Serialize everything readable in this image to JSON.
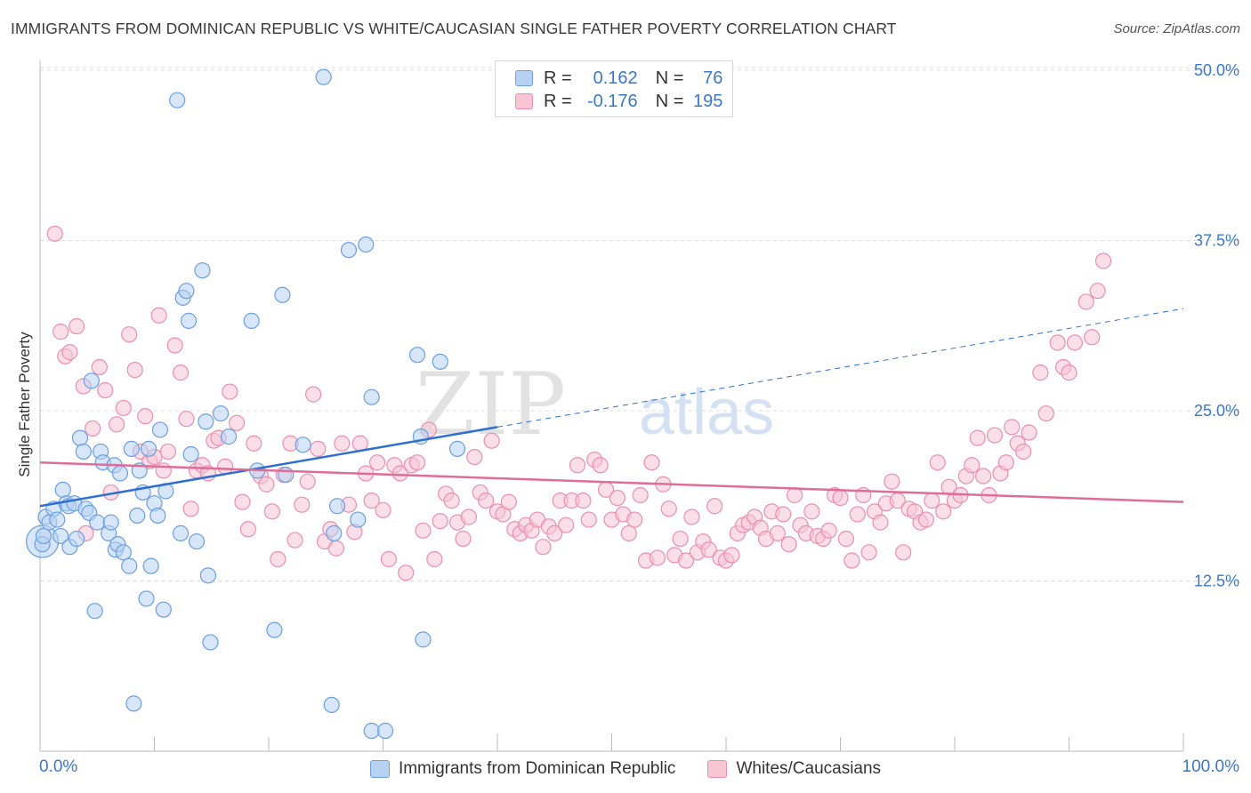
{
  "title": "IMMIGRANTS FROM DOMINICAN REPUBLIC VS WHITE/CAUCASIAN SINGLE FATHER POVERTY CORRELATION CHART",
  "source": "Source: ZipAtlas.com",
  "watermark_zip": "ZIP",
  "watermark_atlas": "atlas",
  "stats": {
    "r_label": "R =",
    "n_label": "N =",
    "rows": [
      {
        "r": "0.162",
        "n": "76"
      },
      {
        "r": "-0.176",
        "n": "195"
      }
    ]
  },
  "legend": {
    "series1": "Immigrants from Dominican Republic",
    "series2": "Whites/Caucasians"
  },
  "colors": {
    "blue_fill": "#b7d1f3",
    "blue_stroke": "#6c9fe0",
    "blue_line": "#2f6fcf",
    "pink_fill": "#f8c5d5",
    "pink_stroke": "#ea8fb0",
    "pink_line": "#e06d97",
    "axis_text": "#3b78c8"
  },
  "chart_data": {
    "type": "scatter",
    "title": "IMMIGRANTS FROM DOMINICAN REPUBLIC VS WHITE/CAUCASIAN SINGLE FATHER POVERTY CORRELATION CHART",
    "xlabel": "",
    "ylabel": "Single Father Poverty",
    "x_tick_labels": [
      "0.0%",
      "100.0%"
    ],
    "y_tick_labels": [
      "12.5%",
      "25.0%",
      "37.5%",
      "50.0%"
    ],
    "y_ticks": [
      12.5,
      25.0,
      37.5,
      50.0
    ],
    "xlim": [
      0,
      100
    ],
    "ylim": [
      0,
      50
    ],
    "grid": true,
    "legend_position": "bottom",
    "series": [
      {
        "name": "Immigrants from Dominican Republic",
        "r": 0.162,
        "n": 76,
        "trend": {
          "x0": 0,
          "y0": 18.0,
          "x1": 40,
          "y1": 23.8,
          "dashed_to_x": 100,
          "dashed_to_y": 32.5
        },
        "points": [
          [
            0.2,
            15.2
          ],
          [
            0.3,
            15.8
          ],
          [
            0.5,
            17.2
          ],
          [
            0.8,
            16.8
          ],
          [
            1.2,
            17.8
          ],
          [
            1.5,
            17.0
          ],
          [
            1.8,
            15.8
          ],
          [
            2.0,
            19.2
          ],
          [
            2.3,
            18.2
          ],
          [
            2.5,
            18.0
          ],
          [
            2.6,
            15.0
          ],
          [
            3.0,
            18.2
          ],
          [
            3.2,
            15.6
          ],
          [
            3.5,
            23.0
          ],
          [
            3.8,
            22.0
          ],
          [
            4.0,
            17.8
          ],
          [
            4.3,
            17.5
          ],
          [
            4.5,
            27.2
          ],
          [
            4.8,
            10.3
          ],
          [
            5.0,
            16.8
          ],
          [
            5.3,
            22.0
          ],
          [
            5.5,
            21.2
          ],
          [
            6.0,
            16.0
          ],
          [
            6.2,
            16.8
          ],
          [
            6.5,
            21.0
          ],
          [
            6.6,
            14.8
          ],
          [
            6.8,
            15.2
          ],
          [
            7.0,
            20.4
          ],
          [
            7.3,
            14.6
          ],
          [
            7.8,
            13.6
          ],
          [
            8.0,
            22.2
          ],
          [
            8.2,
            3.5
          ],
          [
            8.5,
            17.3
          ],
          [
            8.7,
            20.6
          ],
          [
            9.0,
            19.0
          ],
          [
            9.3,
            11.2
          ],
          [
            9.5,
            22.2
          ],
          [
            9.7,
            13.6
          ],
          [
            10.0,
            18.2
          ],
          [
            10.3,
            17.3
          ],
          [
            10.5,
            23.6
          ],
          [
            10.8,
            10.4
          ],
          [
            11.0,
            19.1
          ],
          [
            12.0,
            47.8
          ],
          [
            12.3,
            16.0
          ],
          [
            12.5,
            33.3
          ],
          [
            12.8,
            33.8
          ],
          [
            13.0,
            31.6
          ],
          [
            13.2,
            21.8
          ],
          [
            13.7,
            15.4
          ],
          [
            14.2,
            35.3
          ],
          [
            14.5,
            24.2
          ],
          [
            14.7,
            12.9
          ],
          [
            14.9,
            8.0
          ],
          [
            15.8,
            24.8
          ],
          [
            16.5,
            23.1
          ],
          [
            18.5,
            31.6
          ],
          [
            19.0,
            20.6
          ],
          [
            20.5,
            8.9
          ],
          [
            21.2,
            33.5
          ],
          [
            21.5,
            20.3
          ],
          [
            23.0,
            22.5
          ],
          [
            24.8,
            49.5
          ],
          [
            25.5,
            3.4
          ],
          [
            25.7,
            16.0
          ],
          [
            26.0,
            18.0
          ],
          [
            27.0,
            36.8
          ],
          [
            27.8,
            17.0
          ],
          [
            28.5,
            37.2
          ],
          [
            29.0,
            26.0
          ],
          [
            29.0,
            1.5
          ],
          [
            30.2,
            1.5
          ],
          [
            33.0,
            29.1
          ],
          [
            33.3,
            23.1
          ],
          [
            33.5,
            8.2
          ],
          [
            35.0,
            28.6
          ],
          [
            36.5,
            22.2
          ]
        ]
      },
      {
        "name": "Whites/Caucasians",
        "r": -0.176,
        "n": 195,
        "trend": {
          "x0": 0,
          "y0": 21.2,
          "x1": 100,
          "y1": 18.3
        },
        "points": [
          [
            1.3,
            38.0
          ],
          [
            1.8,
            30.8
          ],
          [
            2.2,
            29.0
          ],
          [
            2.6,
            29.3
          ],
          [
            3.2,
            31.2
          ],
          [
            3.8,
            26.8
          ],
          [
            4.0,
            16.0
          ],
          [
            4.6,
            23.7
          ],
          [
            5.2,
            28.2
          ],
          [
            5.7,
            26.5
          ],
          [
            6.2,
            19.0
          ],
          [
            6.7,
            24.0
          ],
          [
            7.3,
            25.2
          ],
          [
            7.8,
            30.6
          ],
          [
            8.3,
            28.0
          ],
          [
            8.8,
            22.0
          ],
          [
            9.2,
            24.6
          ],
          [
            9.6,
            21.3
          ],
          [
            10.0,
            21.6
          ],
          [
            10.4,
            32.0
          ],
          [
            10.8,
            20.6
          ],
          [
            11.2,
            22.0
          ],
          [
            11.8,
            29.8
          ],
          [
            12.3,
            27.8
          ],
          [
            12.8,
            24.4
          ],
          [
            13.2,
            17.8
          ],
          [
            13.7,
            20.6
          ],
          [
            14.2,
            21.0
          ],
          [
            14.7,
            20.4
          ],
          [
            15.2,
            22.8
          ],
          [
            15.6,
            23.0
          ],
          [
            16.2,
            20.9
          ],
          [
            16.6,
            26.4
          ],
          [
            17.2,
            24.1
          ],
          [
            17.7,
            18.3
          ],
          [
            18.2,
            16.3
          ],
          [
            18.7,
            22.6
          ],
          [
            19.3,
            20.2
          ],
          [
            19.8,
            19.6
          ],
          [
            20.3,
            17.6
          ],
          [
            20.8,
            14.1
          ],
          [
            21.3,
            20.3
          ],
          [
            21.9,
            22.6
          ],
          [
            22.3,
            15.5
          ],
          [
            22.9,
            18.1
          ],
          [
            23.4,
            19.8
          ],
          [
            23.9,
            26.2
          ],
          [
            24.3,
            22.2
          ],
          [
            24.9,
            15.4
          ],
          [
            25.4,
            16.3
          ],
          [
            25.9,
            14.9
          ],
          [
            26.4,
            22.6
          ],
          [
            27.0,
            18.1
          ],
          [
            27.5,
            16.1
          ],
          [
            28.0,
            22.6
          ],
          [
            28.5,
            20.4
          ],
          [
            29.0,
            18.4
          ],
          [
            29.5,
            21.2
          ],
          [
            30.0,
            17.7
          ],
          [
            30.5,
            14.1
          ],
          [
            31.0,
            21.0
          ],
          [
            31.5,
            20.4
          ],
          [
            32.0,
            13.1
          ],
          [
            32.5,
            21.0
          ],
          [
            33.0,
            21.2
          ],
          [
            33.5,
            16.2
          ],
          [
            34.0,
            23.6
          ],
          [
            34.5,
            14.1
          ],
          [
            35.0,
            16.9
          ],
          [
            35.5,
            18.9
          ],
          [
            36.0,
            18.4
          ],
          [
            36.5,
            16.8
          ],
          [
            37.0,
            15.6
          ],
          [
            37.5,
            17.2
          ],
          [
            38.0,
            21.6
          ],
          [
            38.5,
            19.0
          ],
          [
            39.0,
            18.4
          ],
          [
            39.5,
            22.8
          ],
          [
            40.0,
            17.6
          ],
          [
            40.5,
            17.4
          ],
          [
            41.0,
            18.3
          ],
          [
            41.5,
            16.3
          ],
          [
            42.0,
            16.0
          ],
          [
            42.5,
            16.6
          ],
          [
            43.0,
            16.2
          ],
          [
            43.5,
            17.0
          ],
          [
            44.0,
            15.0
          ],
          [
            44.5,
            16.5
          ],
          [
            45.0,
            16.0
          ],
          [
            45.5,
            18.4
          ],
          [
            46.0,
            16.6
          ],
          [
            46.5,
            18.4
          ],
          [
            47.0,
            21.0
          ],
          [
            47.5,
            18.4
          ],
          [
            48.0,
            17.0
          ],
          [
            48.5,
            21.4
          ],
          [
            49.0,
            21.0
          ],
          [
            49.5,
            19.2
          ],
          [
            50.0,
            17.0
          ],
          [
            50.5,
            18.6
          ],
          [
            51.0,
            17.4
          ],
          [
            51.5,
            16.0
          ],
          [
            52.0,
            17.0
          ],
          [
            52.5,
            18.8
          ],
          [
            53.0,
            14.0
          ],
          [
            53.5,
            21.2
          ],
          [
            54.0,
            14.2
          ],
          [
            54.5,
            19.6
          ],
          [
            55.0,
            17.8
          ],
          [
            55.5,
            14.4
          ],
          [
            56.0,
            15.6
          ],
          [
            56.5,
            14.0
          ],
          [
            57.0,
            17.2
          ],
          [
            57.5,
            14.6
          ],
          [
            58.0,
            15.4
          ],
          [
            58.5,
            14.8
          ],
          [
            59.0,
            18.0
          ],
          [
            59.5,
            14.2
          ],
          [
            60.0,
            14.0
          ],
          [
            60.5,
            14.4
          ],
          [
            61.0,
            16.0
          ],
          [
            61.5,
            16.6
          ],
          [
            62.0,
            16.8
          ],
          [
            62.5,
            17.2
          ],
          [
            63.0,
            16.4
          ],
          [
            63.5,
            15.6
          ],
          [
            64.0,
            17.6
          ],
          [
            64.5,
            16.0
          ],
          [
            65.0,
            17.4
          ],
          [
            65.5,
            15.2
          ],
          [
            66.0,
            18.8
          ],
          [
            66.5,
            16.6
          ],
          [
            67.0,
            16.0
          ],
          [
            67.5,
            17.6
          ],
          [
            68.0,
            15.8
          ],
          [
            68.5,
            15.6
          ],
          [
            69.0,
            16.2
          ],
          [
            69.5,
            18.8
          ],
          [
            70.0,
            18.6
          ],
          [
            70.5,
            15.6
          ],
          [
            71.0,
            14.0
          ],
          [
            71.5,
            17.4
          ],
          [
            72.0,
            18.8
          ],
          [
            72.5,
            14.6
          ],
          [
            73.0,
            17.6
          ],
          [
            73.5,
            16.8
          ],
          [
            74.0,
            18.2
          ],
          [
            74.5,
            19.8
          ],
          [
            75.0,
            18.4
          ],
          [
            75.5,
            14.6
          ],
          [
            76.0,
            17.8
          ],
          [
            76.5,
            17.6
          ],
          [
            77.0,
            16.8
          ],
          [
            77.5,
            17.0
          ],
          [
            78.0,
            18.4
          ],
          [
            78.5,
            21.2
          ],
          [
            79.0,
            17.6
          ],
          [
            79.5,
            19.4
          ],
          [
            80.0,
            18.4
          ],
          [
            80.5,
            18.8
          ],
          [
            81.0,
            20.2
          ],
          [
            81.5,
            21.0
          ],
          [
            82.0,
            23.0
          ],
          [
            82.5,
            20.2
          ],
          [
            83.0,
            18.8
          ],
          [
            83.5,
            23.2
          ],
          [
            84.0,
            20.4
          ],
          [
            84.5,
            21.2
          ],
          [
            85.0,
            23.8
          ],
          [
            85.5,
            22.6
          ],
          [
            86.0,
            22.0
          ],
          [
            86.5,
            23.4
          ],
          [
            87.5,
            27.8
          ],
          [
            88.0,
            24.8
          ],
          [
            89.0,
            30.0
          ],
          [
            89.5,
            28.2
          ],
          [
            90.0,
            27.8
          ],
          [
            90.5,
            30.0
          ],
          [
            91.5,
            33.0
          ],
          [
            92.0,
            30.4
          ],
          [
            92.5,
            33.8
          ],
          [
            93.0,
            36.0
          ]
        ]
      }
    ]
  }
}
